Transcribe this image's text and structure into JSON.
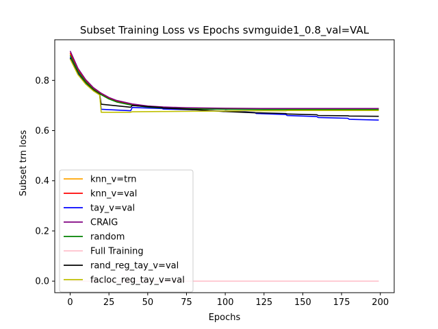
{
  "chart_data": {
    "type": "line",
    "title": "Subset Training Loss vs Epochs svmguide1_0.8_val=VAL",
    "xlabel": "Epochs",
    "ylabel": "Subset trn loss",
    "xlim": [
      -9.95,
      208.95
    ],
    "ylim": [
      -0.046,
      0.962
    ],
    "xticks": [
      0,
      25,
      50,
      75,
      100,
      125,
      150,
      175,
      200
    ],
    "yticks": [
      0.0,
      0.2,
      0.4,
      0.6,
      0.8
    ],
    "ytick_labels": [
      "0.0",
      "0.2",
      "0.4",
      "0.6",
      "0.8"
    ],
    "legend_position": "lower-left",
    "grid": false,
    "series": [
      {
        "name": "knn_v=trn",
        "color": "#ffa500",
        "points": [
          [
            0,
            0.905
          ],
          [
            5,
            0.84
          ],
          [
            10,
            0.797
          ],
          [
            15,
            0.766
          ],
          [
            20,
            0.745
          ],
          [
            25,
            0.728
          ],
          [
            30,
            0.716
          ],
          [
            40,
            0.703
          ],
          [
            50,
            0.696
          ],
          [
            60,
            0.692
          ],
          [
            75,
            0.689
          ],
          [
            100,
            0.687
          ],
          [
            125,
            0.686
          ],
          [
            150,
            0.686
          ],
          [
            175,
            0.686
          ],
          [
            199,
            0.686
          ]
        ]
      },
      {
        "name": "knn_v=val",
        "color": "#ff0000",
        "points": [
          [
            0,
            0.91
          ],
          [
            5,
            0.843
          ],
          [
            10,
            0.799
          ],
          [
            15,
            0.768
          ],
          [
            20,
            0.747
          ],
          [
            25,
            0.73
          ],
          [
            30,
            0.718
          ],
          [
            40,
            0.705
          ],
          [
            50,
            0.697
          ],
          [
            60,
            0.693
          ],
          [
            75,
            0.69
          ],
          [
            100,
            0.688
          ],
          [
            125,
            0.687
          ],
          [
            150,
            0.687
          ],
          [
            175,
            0.687
          ],
          [
            199,
            0.687
          ]
        ]
      },
      {
        "name": "tay_v=val",
        "color": "#0000ff",
        "points": [
          [
            0,
            0.893
          ],
          [
            5,
            0.83
          ],
          [
            10,
            0.79
          ],
          [
            15,
            0.762
          ],
          [
            19,
            0.745
          ],
          [
            20,
            0.685
          ],
          [
            39,
            0.679
          ],
          [
            40,
            0.692
          ],
          [
            59,
            0.688
          ],
          [
            60,
            0.686
          ],
          [
            79,
            0.683
          ],
          [
            80,
            0.683
          ],
          [
            99,
            0.677
          ],
          [
            100,
            0.679
          ],
          [
            119,
            0.672
          ],
          [
            120,
            0.668
          ],
          [
            139,
            0.664
          ],
          [
            140,
            0.66
          ],
          [
            159,
            0.656
          ],
          [
            160,
            0.652
          ],
          [
            179,
            0.649
          ],
          [
            180,
            0.645
          ],
          [
            199,
            0.642
          ]
        ]
      },
      {
        "name": "CRAIG",
        "color": "#800080",
        "points": [
          [
            0,
            0.917
          ],
          [
            5,
            0.848
          ],
          [
            10,
            0.803
          ],
          [
            15,
            0.771
          ],
          [
            20,
            0.749
          ],
          [
            25,
            0.732
          ],
          [
            30,
            0.72
          ],
          [
            40,
            0.706
          ],
          [
            50,
            0.698
          ],
          [
            60,
            0.694
          ],
          [
            75,
            0.691
          ],
          [
            100,
            0.689
          ],
          [
            125,
            0.688
          ],
          [
            150,
            0.688
          ],
          [
            175,
            0.688
          ],
          [
            199,
            0.688
          ]
        ]
      },
      {
        "name": "random",
        "color": "#008000",
        "points": [
          [
            0,
            0.9
          ],
          [
            5,
            0.836
          ],
          [
            10,
            0.794
          ],
          [
            15,
            0.764
          ],
          [
            20,
            0.743
          ],
          [
            25,
            0.726
          ],
          [
            30,
            0.714
          ],
          [
            40,
            0.701
          ],
          [
            50,
            0.694
          ],
          [
            60,
            0.69
          ],
          [
            75,
            0.687
          ],
          [
            100,
            0.685
          ],
          [
            125,
            0.684
          ],
          [
            150,
            0.684
          ],
          [
            175,
            0.684
          ],
          [
            199,
            0.684
          ]
        ]
      },
      {
        "name": "Full Training",
        "color": "#ffc0cb",
        "points": [
          [
            0,
            0.0
          ],
          [
            199,
            0.0
          ]
        ]
      },
      {
        "name": "rand_reg_tay_v=val",
        "color": "#000000",
        "points": [
          [
            0,
            0.888
          ],
          [
            5,
            0.826
          ],
          [
            10,
            0.787
          ],
          [
            15,
            0.76
          ],
          [
            19,
            0.744
          ],
          [
            20,
            0.705
          ],
          [
            39,
            0.693
          ],
          [
            40,
            0.7
          ],
          [
            59,
            0.692
          ],
          [
            60,
            0.69
          ],
          [
            79,
            0.684
          ],
          [
            80,
            0.684
          ],
          [
            99,
            0.676
          ],
          [
            100,
            0.676
          ],
          [
            119,
            0.671
          ],
          [
            120,
            0.671
          ],
          [
            139,
            0.668
          ],
          [
            140,
            0.666
          ],
          [
            159,
            0.663
          ],
          [
            160,
            0.66
          ],
          [
            179,
            0.659
          ],
          [
            180,
            0.658
          ],
          [
            199,
            0.657
          ]
        ]
      },
      {
        "name": "facloc_reg_tay_v=val",
        "color": "#bfbf00",
        "points": [
          [
            0,
            0.885
          ],
          [
            5,
            0.823
          ],
          [
            10,
            0.785
          ],
          [
            15,
            0.758
          ],
          [
            19,
            0.742
          ],
          [
            20,
            0.673
          ],
          [
            39,
            0.673
          ],
          [
            40,
            0.675
          ],
          [
            59,
            0.676
          ],
          [
            60,
            0.676
          ],
          [
            79,
            0.677
          ],
          [
            80,
            0.677
          ],
          [
            99,
            0.678
          ],
          [
            100,
            0.678
          ],
          [
            119,
            0.679
          ],
          [
            120,
            0.679
          ],
          [
            139,
            0.679
          ],
          [
            140,
            0.68
          ],
          [
            159,
            0.68
          ],
          [
            160,
            0.68
          ],
          [
            179,
            0.68
          ],
          [
            180,
            0.68
          ],
          [
            199,
            0.68
          ]
        ]
      }
    ]
  }
}
